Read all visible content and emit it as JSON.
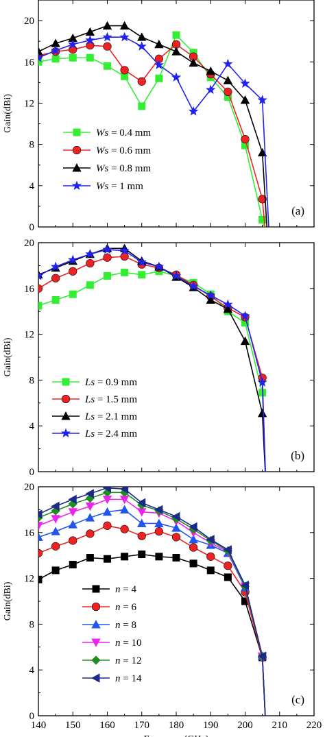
{
  "chart_data": [
    {
      "type": "line",
      "panel_label": "(a)",
      "xlabel": "",
      "ylabel": "Gain(dBi)",
      "xlim": [
        140,
        220
      ],
      "ylim": [
        0,
        22
      ],
      "yticks": [
        0,
        4,
        8,
        12,
        16,
        20
      ],
      "legend_position": "center-left",
      "series": [
        {
          "name_prefix": "Ws",
          "name_suffix": " = 0.4 mm",
          "color": "#33ee33",
          "marker": "square",
          "x": [
            140,
            145,
            150,
            155,
            160,
            165,
            170,
            175,
            180,
            185,
            190,
            195,
            200,
            205,
            206
          ],
          "y": [
            16.0,
            16.3,
            16.4,
            16.4,
            15.6,
            14.6,
            11.7,
            14.4,
            18.6,
            16.9,
            14.5,
            12.6,
            7.9,
            0.7,
            -1
          ]
        },
        {
          "name_prefix": "Ws",
          "name_suffix": " = 0.6 mm",
          "color": "#ee2222",
          "marker": "circle",
          "x": [
            140,
            145,
            150,
            155,
            160,
            165,
            170,
            175,
            180,
            185,
            190,
            195,
            200,
            205,
            206
          ],
          "y": [
            16.6,
            17.0,
            17.2,
            17.6,
            17.5,
            15.2,
            14.1,
            16.3,
            17.7,
            16.5,
            14.8,
            13.1,
            8.5,
            2.7,
            -1
          ]
        },
        {
          "name_prefix": "Ws",
          "name_suffix": " = 0.8 mm",
          "color": "#000000",
          "marker": "triangle-up",
          "x": [
            140,
            145,
            150,
            155,
            160,
            165,
            170,
            175,
            180,
            185,
            190,
            195,
            200,
            205,
            206.5
          ],
          "y": [
            17.0,
            17.8,
            18.3,
            18.9,
            19.5,
            19.5,
            18.4,
            17.7,
            17.0,
            15.9,
            15.1,
            14.2,
            12.3,
            7.2,
            -1
          ]
        },
        {
          "name_prefix": "Ws",
          "name_suffix": " = 1  mm",
          "color": "#2222ee",
          "marker": "star",
          "x": [
            140,
            145,
            150,
            155,
            160,
            165,
            170,
            175,
            180,
            185,
            190,
            195,
            200,
            205,
            207
          ],
          "y": [
            16.4,
            17.1,
            17.7,
            18.1,
            18.4,
            18.4,
            17.5,
            15.7,
            14.5,
            11.2,
            13.3,
            15.8,
            13.9,
            12.3,
            -1
          ]
        }
      ]
    },
    {
      "type": "line",
      "panel_label": "(b)",
      "xlabel": "",
      "ylabel": "Gain(dBi)",
      "xlim": [
        140,
        220
      ],
      "ylim": [
        0,
        20
      ],
      "yticks": [
        0,
        4,
        8,
        12,
        16,
        20
      ],
      "legend_position": "lower-left",
      "series": [
        {
          "name_prefix": "Ls",
          "name_suffix": " = 0.9 mm",
          "color": "#33ee33",
          "marker": "square",
          "x": [
            140,
            145,
            150,
            155,
            160,
            165,
            170,
            175,
            180,
            185,
            190,
            195,
            200,
            205,
            206
          ],
          "y": [
            14.5,
            15.0,
            15.5,
            16.3,
            17.1,
            17.4,
            17.2,
            17.5,
            17.1,
            16.5,
            15.5,
            14.0,
            13.0,
            6.9,
            -1
          ]
        },
        {
          "name_prefix": "Ls",
          "name_suffix": " = 1.5 mm",
          "color": "#ee2222",
          "marker": "circle",
          "x": [
            140,
            145,
            150,
            155,
            160,
            165,
            170,
            175,
            180,
            185,
            190,
            195,
            200,
            205,
            206
          ],
          "y": [
            16.0,
            16.9,
            17.5,
            18.2,
            18.7,
            18.8,
            18.1,
            17.8,
            17.2,
            16.3,
            15.3,
            14.3,
            13.5,
            8.2,
            -1
          ]
        },
        {
          "name_prefix": "Ls",
          "name_suffix": " = 2.1 mm",
          "color": "#000000",
          "marker": "triangle-up",
          "x": [
            140,
            145,
            150,
            155,
            160,
            165,
            170,
            175,
            180,
            185,
            190,
            195,
            200,
            205,
            206
          ],
          "y": [
            17.2,
            17.8,
            18.4,
            19.0,
            19.5,
            19.5,
            18.4,
            17.9,
            17.0,
            16.1,
            15.0,
            14.2,
            11.4,
            5.1,
            -1
          ]
        },
        {
          "name_prefix": "Ls",
          "name_suffix": " = 2.4 mm",
          "color": "#2222ee",
          "marker": "star",
          "x": [
            140,
            145,
            150,
            155,
            160,
            165,
            170,
            175,
            180,
            185,
            190,
            195,
            200,
            205,
            206
          ],
          "y": [
            17.1,
            17.9,
            18.5,
            19.0,
            19.4,
            19.3,
            18.3,
            17.9,
            17.1,
            16.2,
            15.4,
            14.6,
            13.6,
            7.8,
            -1
          ]
        }
      ]
    },
    {
      "type": "line",
      "panel_label": "(c)",
      "xlabel": "Frequency(GHz)",
      "ylabel": "Gain(dBi)",
      "xlim": [
        140,
        220
      ],
      "ylim": [
        0,
        20
      ],
      "xticks": [
        140,
        150,
        160,
        170,
        180,
        190,
        200,
        210,
        220
      ],
      "yticks": [
        0,
        4,
        8,
        12,
        16,
        20
      ],
      "legend_position": "lower-left",
      "series": [
        {
          "name_prefix": "n",
          "name_suffix": " = 4",
          "color": "#000000",
          "marker": "square",
          "x": [
            140,
            145,
            150,
            155,
            160,
            165,
            170,
            175,
            180,
            185,
            190,
            195,
            200,
            205,
            206
          ],
          "y": [
            11.9,
            12.7,
            13.2,
            13.8,
            13.7,
            13.9,
            14.1,
            13.9,
            13.8,
            13.3,
            12.7,
            12.1,
            10.0,
            5.1,
            -1
          ]
        },
        {
          "name_prefix": "n",
          "name_suffix": " = 6",
          "color": "#ee2222",
          "marker": "circle",
          "x": [
            140,
            145,
            150,
            155,
            160,
            165,
            170,
            175,
            180,
            185,
            190,
            195,
            200,
            205,
            206
          ],
          "y": [
            14.2,
            14.8,
            15.3,
            15.9,
            16.6,
            16.3,
            15.7,
            16.1,
            15.6,
            14.7,
            13.9,
            13.1,
            10.8,
            5.1,
            -1
          ]
        },
        {
          "name_prefix": "n",
          "name_suffix": " = 8",
          "color": "#2255ee",
          "marker": "triangle-up",
          "x": [
            140,
            145,
            150,
            155,
            160,
            165,
            170,
            175,
            180,
            185,
            190,
            195,
            200,
            205,
            206
          ],
          "y": [
            15.6,
            16.1,
            16.7,
            17.3,
            17.8,
            18.0,
            16.8,
            16.8,
            16.4,
            15.4,
            14.9,
            14.2,
            11.2,
            5.2,
            -1
          ]
        },
        {
          "name_prefix": "n",
          "name_suffix": " = 10",
          "color": "#ee22ee",
          "marker": "triangle-down",
          "x": [
            140,
            145,
            150,
            155,
            160,
            165,
            170,
            175,
            180,
            185,
            190,
            195,
            200,
            205,
            206
          ],
          "y": [
            16.6,
            17.2,
            17.8,
            18.3,
            18.9,
            18.9,
            17.8,
            17.7,
            17.0,
            16.0,
            15.1,
            14.3,
            11.3,
            5.2,
            -1
          ]
        },
        {
          "name_prefix": "n",
          "name_suffix": " = 12",
          "color": "#228b22",
          "marker": "diamond",
          "x": [
            140,
            145,
            150,
            155,
            160,
            165,
            170,
            175,
            180,
            185,
            190,
            195,
            200,
            205,
            206
          ],
          "y": [
            17.3,
            17.9,
            18.5,
            19.0,
            19.5,
            19.5,
            18.4,
            17.9,
            17.2,
            16.3,
            15.3,
            14.4,
            11.3,
            5.2,
            -1
          ]
        },
        {
          "name_prefix": "n",
          "name_suffix": " = 14",
          "color": "#1a2a88",
          "marker": "triangle-left",
          "x": [
            140,
            145,
            150,
            155,
            160,
            165,
            170,
            175,
            180,
            185,
            190,
            195,
            200,
            205,
            206
          ],
          "y": [
            17.6,
            18.3,
            18.9,
            19.4,
            19.9,
            19.8,
            18.6,
            18.0,
            17.4,
            16.5,
            15.4,
            14.5,
            11.4,
            5.2,
            -1
          ]
        }
      ]
    }
  ]
}
